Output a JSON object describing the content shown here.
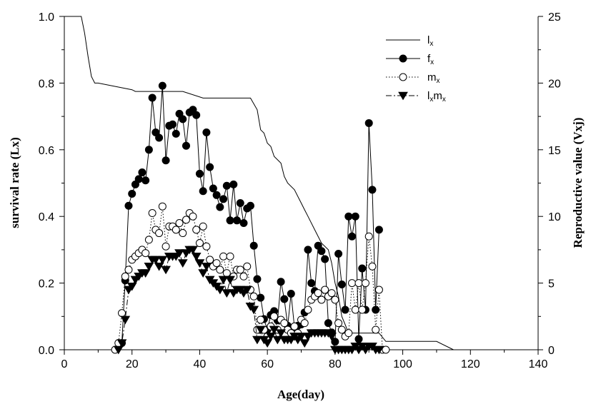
{
  "chart_data": {
    "type": "line",
    "title": "",
    "xlabel": "Age(day)",
    "ylabel_left": "survival rate (Lx)",
    "ylabel_right": "Reproductive value (Vxj)",
    "xlim": [
      0,
      140
    ],
    "ylim_left": [
      0,
      1.0
    ],
    "ylim_right": [
      0,
      25
    ],
    "xticks": [
      "0",
      "20",
      "40",
      "60",
      "80",
      "100",
      "120",
      "140"
    ],
    "yticks_left": [
      "0.0",
      "0.2",
      "0.4",
      "0.6",
      "0.8",
      "1.0"
    ],
    "yticks_right": [
      "0",
      "5",
      "10",
      "15",
      "20",
      "25"
    ],
    "grid": false,
    "legend_placement": "top-right",
    "legend": [
      {
        "base": "l",
        "sub": "x"
      },
      {
        "base": "f",
        "sub": "x"
      },
      {
        "base": "m",
        "sub": "x"
      },
      {
        "base": "l",
        "sub": "x",
        "base2": "m",
        "sub2": "x"
      }
    ],
    "series": [
      {
        "key": "lx",
        "style": "solid-step",
        "x": [
          0,
          5,
          6,
          7,
          8,
          9,
          10,
          20,
          21,
          28,
          35,
          41,
          50,
          55,
          57,
          58,
          59,
          60,
          61,
          62,
          64,
          65,
          66,
          68,
          70,
          71,
          72,
          74,
          76,
          78,
          79,
          80,
          81,
          82,
          83,
          84,
          85,
          90,
          93,
          95,
          100,
          105,
          110,
          115
        ],
        "y": [
          1.0,
          1.0,
          0.95,
          0.88,
          0.82,
          0.8,
          0.8,
          0.78,
          0.775,
          0.775,
          0.775,
          0.755,
          0.755,
          0.755,
          0.72,
          0.66,
          0.65,
          0.62,
          0.61,
          0.58,
          0.56,
          0.52,
          0.5,
          0.48,
          0.44,
          0.42,
          0.4,
          0.36,
          0.32,
          0.3,
          0.26,
          0.2,
          0.16,
          0.1,
          0.075,
          0.05,
          0.05,
          0.05,
          0.05,
          0.025,
          0.025,
          0.025,
          0.025,
          0.0
        ]
      },
      {
        "key": "fx",
        "style": "solid-filled-circle",
        "x": [
          17,
          18,
          19,
          20,
          21,
          22,
          23,
          24,
          25,
          26,
          27,
          28,
          29,
          30,
          31,
          32,
          33,
          34,
          35,
          36,
          37,
          38,
          39,
          40,
          41,
          42,
          43,
          44,
          45,
          46,
          47,
          48,
          49,
          50,
          51,
          52,
          53,
          54,
          55,
          56,
          57,
          58,
          59,
          60,
          61,
          62,
          63,
          64,
          65,
          66,
          67,
          68,
          69,
          70,
          71,
          72,
          73,
          74,
          75,
          76,
          77,
          78,
          79,
          80,
          81,
          82,
          83,
          84,
          85,
          86,
          87,
          88,
          89,
          90,
          91,
          92,
          93
        ],
        "y": [
          0.5,
          5.2,
          10.8,
          11.7,
          12.4,
          12.8,
          13.3,
          12.7,
          15.0,
          18.9,
          16.3,
          15.9,
          19.8,
          14.2,
          16.8,
          16.9,
          16.2,
          17.7,
          17.3,
          15.3,
          17.8,
          18.0,
          17.6,
          13.2,
          11.9,
          16.3,
          13.7,
          12.1,
          11.6,
          10.7,
          11.3,
          12.3,
          9.7,
          12.4,
          9.7,
          11.0,
          9.5,
          10.6,
          10.8,
          7.8,
          5.3,
          3.9,
          2.3,
          1.5,
          2.6,
          2.9,
          2.2,
          5.1,
          3.8,
          1.8,
          4.2,
          1.7,
          1.8,
          1.9,
          2.8,
          7.5,
          5.0,
          4.4,
          7.8,
          7.4,
          6.8,
          2.0,
          1.3,
          0.6,
          7.2,
          4.9,
          3.0,
          10.0,
          8.5,
          10.0,
          0.8,
          6.1,
          3.0,
          17.0,
          12.0,
          3.0,
          9.0
        ]
      },
      {
        "key": "mx",
        "style": "dotted-open-circle",
        "x": [
          15,
          16,
          17,
          18,
          19,
          20,
          21,
          22,
          23,
          24,
          25,
          26,
          27,
          28,
          29,
          30,
          31,
          32,
          33,
          34,
          35,
          36,
          37,
          38,
          39,
          40,
          41,
          42,
          43,
          44,
          45,
          46,
          47,
          48,
          49,
          50,
          51,
          52,
          53,
          54,
          55,
          56,
          57,
          58,
          59,
          60,
          61,
          62,
          63,
          64,
          65,
          66,
          67,
          68,
          69,
          70,
          71,
          72,
          73,
          74,
          75,
          76,
          77,
          78,
          79,
          80,
          81,
          82,
          83,
          84,
          85,
          86,
          87,
          88,
          89,
          90,
          91,
          92,
          93,
          94,
          95
        ],
        "y": [
          0.0,
          0.02,
          0.11,
          0.22,
          0.24,
          0.27,
          0.28,
          0.29,
          0.3,
          0.29,
          0.33,
          0.41,
          0.36,
          0.35,
          0.43,
          0.31,
          0.37,
          0.37,
          0.36,
          0.38,
          0.35,
          0.39,
          0.41,
          0.4,
          0.36,
          0.32,
          0.37,
          0.31,
          0.27,
          0.25,
          0.26,
          0.24,
          0.28,
          0.23,
          0.28,
          0.22,
          0.24,
          0.24,
          0.22,
          0.25,
          0.18,
          0.16,
          0.06,
          0.09,
          0.06,
          0.04,
          0.07,
          0.1,
          0.06,
          0.09,
          0.08,
          0.06,
          0.05,
          0.07,
          0.05,
          0.09,
          0.08,
          0.12,
          0.15,
          0.16,
          0.17,
          0.15,
          0.18,
          0.16,
          0.17,
          0.15,
          0.08,
          0.06,
          0.04,
          0.05,
          0.2,
          0.12,
          0.2,
          0.12,
          0.2,
          0.34,
          0.25,
          0.06,
          0.18,
          0.0,
          0.0
        ]
      },
      {
        "key": "lxmx",
        "style": "dashdot-filled-triangle",
        "x": [
          16,
          17,
          18,
          19,
          20,
          21,
          22,
          23,
          24,
          25,
          26,
          27,
          28,
          29,
          30,
          31,
          32,
          33,
          34,
          35,
          36,
          37,
          38,
          39,
          40,
          41,
          42,
          43,
          44,
          45,
          46,
          47,
          48,
          49,
          50,
          51,
          52,
          53,
          54,
          55,
          56,
          57,
          58,
          59,
          60,
          61,
          62,
          63,
          64,
          65,
          66,
          67,
          68,
          69,
          70,
          71,
          72,
          73,
          74,
          75,
          76,
          77,
          78,
          79,
          80,
          81,
          82,
          83,
          84,
          85,
          86,
          87,
          88,
          89,
          90,
          91,
          92,
          93
        ],
        "y": [
          0.0,
          0.02,
          0.09,
          0.18,
          0.19,
          0.21,
          0.22,
          0.23,
          0.23,
          0.25,
          0.27,
          0.27,
          0.25,
          0.27,
          0.24,
          0.28,
          0.28,
          0.28,
          0.29,
          0.26,
          0.29,
          0.3,
          0.3,
          0.28,
          0.26,
          0.23,
          0.25,
          0.21,
          0.2,
          0.19,
          0.18,
          0.21,
          0.17,
          0.21,
          0.17,
          0.18,
          0.18,
          0.17,
          0.18,
          0.13,
          0.12,
          0.03,
          0.06,
          0.03,
          0.02,
          0.04,
          0.06,
          0.03,
          0.05,
          0.03,
          0.03,
          0.03,
          0.04,
          0.03,
          0.04,
          0.02,
          0.04,
          0.05,
          0.05,
          0.05,
          0.05,
          0.05,
          0.05,
          0.04,
          0.0,
          0.0,
          0.0,
          0.0,
          0.0,
          0.0,
          0.01,
          0.0,
          0.01,
          0.0,
          0.01,
          0.01,
          0.0,
          0.0
        ]
      }
    ]
  }
}
